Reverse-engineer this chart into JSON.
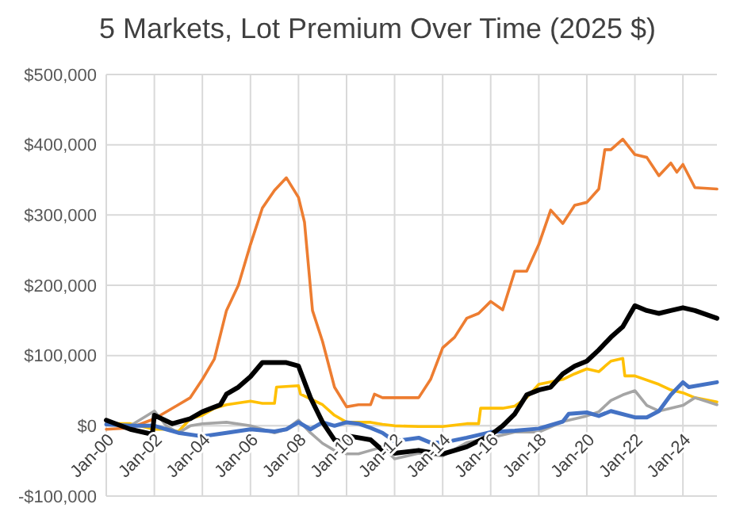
{
  "chart_data": {
    "type": "line",
    "title": "5 Markets, Lot Premium Over Time (2025 $)",
    "xlim": [
      "2000-01",
      "2025-06"
    ],
    "xticks": [
      {
        "value": "2000-01",
        "label": "Jan-00"
      },
      {
        "value": "2002-01",
        "label": "Jan-02"
      },
      {
        "value": "2004-01",
        "label": "Jan-04"
      },
      {
        "value": "2006-01",
        "label": "Jan-06"
      },
      {
        "value": "2008-01",
        "label": "Jan-08"
      },
      {
        "value": "2010-01",
        "label": "Jan-10"
      },
      {
        "value": "2012-01",
        "label": "Jan-12"
      },
      {
        "value": "2014-01",
        "label": "Jan-14"
      },
      {
        "value": "2016-01",
        "label": "Jan-16"
      },
      {
        "value": "2018-01",
        "label": "Jan-18"
      },
      {
        "value": "2020-01",
        "label": "Jan-20"
      },
      {
        "value": "2022-01",
        "label": "Jan-22"
      },
      {
        "value": "2024-01",
        "label": "Jan-24"
      }
    ],
    "ylim": [
      -100000,
      500000
    ],
    "yticks": [
      {
        "value": -100000,
        "label": "-$100,000"
      },
      {
        "value": 0,
        "label": "$0"
      },
      {
        "value": 100000,
        "label": "$100,000"
      },
      {
        "value": 200000,
        "label": "$200,000"
      },
      {
        "value": 300000,
        "label": "$300,000"
      },
      {
        "value": 400000,
        "label": "$400,000"
      },
      {
        "value": 500000,
        "label": "$500,000"
      }
    ],
    "grid": true,
    "series": [
      {
        "color": "#ed7d31",
        "x": [
          "2000-01",
          "2001-01",
          "2002-01",
          "2003-01",
          "2003-07",
          "2004-01",
          "2004-07",
          "2005-01",
          "2005-07",
          "2006-01",
          "2006-07",
          "2007-01",
          "2007-07",
          "2008-01",
          "2008-04",
          "2008-08",
          "2009-01",
          "2009-07",
          "2010-01",
          "2010-07",
          "2011-01",
          "2011-03",
          "2011-07",
          "2012-01",
          "2013-01",
          "2013-07",
          "2014-01",
          "2014-07",
          "2015-01",
          "2015-07",
          "2016-01",
          "2016-07",
          "2017-01",
          "2017-07",
          "2018-01",
          "2018-07",
          "2019-01",
          "2019-07",
          "2020-01",
          "2020-07",
          "2020-10",
          "2021-01",
          "2021-07",
          "2022-01",
          "2022-07",
          "2023-01",
          "2023-07",
          "2023-10",
          "2024-01",
          "2024-07",
          "2025-06"
        ],
        "values": [
          -5000,
          -3000,
          10000,
          30000,
          40000,
          66000,
          95000,
          164000,
          200000,
          258000,
          310000,
          335000,
          353000,
          325000,
          290000,
          164000,
          120000,
          55000,
          27000,
          30000,
          30000,
          45000,
          40000,
          40000,
          40000,
          66000,
          111000,
          126000,
          153000,
          160000,
          177000,
          165000,
          220000,
          220000,
          258000,
          307000,
          288000,
          314000,
          318000,
          337000,
          393000,
          393000,
          408000,
          386000,
          382000,
          356000,
          374000,
          361000,
          372000,
          339000,
          337000
        ]
      },
      {
        "color": "#ffc000",
        "x": [
          "2000-01",
          "2001-01",
          "2002-01",
          "2002-07",
          "2003-01",
          "2003-07",
          "2004-01",
          "2004-07",
          "2005-01",
          "2006-01",
          "2006-07",
          "2007-01",
          "2007-02",
          "2008-01",
          "2008-02",
          "2009-01",
          "2009-07",
          "2010-01",
          "2011-01",
          "2011-07",
          "2012-01",
          "2013-01",
          "2014-01",
          "2015-01",
          "2015-07",
          "2015-08",
          "2016-07",
          "2017-01",
          "2017-07",
          "2018-01",
          "2019-01",
          "2019-07",
          "2020-01",
          "2020-07",
          "2021-01",
          "2021-07",
          "2021-08",
          "2022-01",
          "2023-01",
          "2023-07",
          "2024-01",
          "2024-07",
          "2025-06"
        ],
        "values": [
          3000,
          3000,
          -5000,
          -5000,
          -8000,
          10000,
          15000,
          25000,
          30000,
          35000,
          32000,
          32000,
          55000,
          57000,
          45000,
          30000,
          15000,
          5000,
          5000,
          2000,
          0,
          -1000,
          -1000,
          3000,
          3000,
          25000,
          25000,
          28000,
          40000,
          59000,
          66000,
          74000,
          81000,
          77000,
          92000,
          96000,
          71000,
          71000,
          59000,
          51000,
          47000,
          40000,
          34000
        ]
      },
      {
        "color": "#a5a5a5",
        "x": [
          "2000-01",
          "2001-01",
          "2002-01",
          "2002-07",
          "2003-01",
          "2003-07",
          "2004-01",
          "2005-01",
          "2006-01",
          "2007-01",
          "2007-07",
          "2008-01",
          "2008-07",
          "2009-01",
          "2009-07",
          "2010-01",
          "2010-07",
          "2011-01",
          "2011-07",
          "2012-01",
          "2013-01",
          "2014-01",
          "2015-01",
          "2016-01",
          "2017-01",
          "2018-01",
          "2019-01",
          "2020-01",
          "2020-07",
          "2021-01",
          "2021-07",
          "2022-01",
          "2022-07",
          "2023-01",
          "2024-01",
          "2024-07",
          "2025-06"
        ],
        "values": [
          2000,
          0,
          21000,
          0,
          -10000,
          0,
          3000,
          5000,
          0,
          -10000,
          -5000,
          8000,
          -10000,
          -25000,
          -35000,
          -40000,
          -40000,
          -35000,
          -30000,
          -47000,
          -39000,
          -43000,
          -24000,
          -17000,
          -9000,
          -9000,
          6000,
          14000,
          20000,
          36000,
          44000,
          50000,
          29000,
          21000,
          29000,
          40000,
          30000
        ]
      },
      {
        "color": "#4472c4",
        "x": [
          "2000-01",
          "2001-01",
          "2002-01",
          "2002-07",
          "2003-01",
          "2004-01",
          "2005-01",
          "2006-01",
          "2007-01",
          "2007-07",
          "2008-01",
          "2008-07",
          "2009-01",
          "2009-07",
          "2010-01",
          "2010-07",
          "2011-01",
          "2011-07",
          "2012-01",
          "2013-01",
          "2013-07",
          "2014-01",
          "2015-01",
          "2016-01",
          "2017-01",
          "2018-01",
          "2019-01",
          "2019-04",
          "2020-01",
          "2020-07",
          "2021-01",
          "2022-01",
          "2022-07",
          "2023-01",
          "2023-07",
          "2024-01",
          "2024-04",
          "2025-06"
        ],
        "values": [
          2000,
          0,
          0,
          -5000,
          -10000,
          -15000,
          -10000,
          -5000,
          -8000,
          -5000,
          5000,
          -5000,
          5000,
          0,
          5000,
          3000,
          -3000,
          -10000,
          -22000,
          -17000,
          -24000,
          -24000,
          -17000,
          -9000,
          -7000,
          -4000,
          6000,
          17000,
          19000,
          14000,
          21000,
          12000,
          12000,
          21000,
          44000,
          62000,
          55000,
          62000
        ]
      },
      {
        "color": "#000000",
        "x": [
          "2000-01",
          "2001-01",
          "2001-12",
          "2002-01",
          "2002-10",
          "2003-07",
          "2004-01",
          "2004-10",
          "2005-01",
          "2005-07",
          "2006-01",
          "2006-07",
          "2007-01",
          "2007-07",
          "2008-01",
          "2008-07",
          "2009-01",
          "2009-07",
          "2010-01",
          "2010-03",
          "2011-01",
          "2011-07",
          "2012-01",
          "2013-01",
          "2013-07",
          "2014-01",
          "2015-01",
          "2016-01",
          "2016-07",
          "2017-01",
          "2017-07",
          "2018-01",
          "2018-07",
          "2019-01",
          "2019-07",
          "2020-01",
          "2020-07",
          "2021-01",
          "2021-07",
          "2022-01",
          "2022-07",
          "2023-01",
          "2023-07",
          "2024-01",
          "2024-07",
          "2025-06"
        ],
        "values": [
          8000,
          -5000,
          -12000,
          15000,
          3000,
          10000,
          20000,
          30000,
          45000,
          55000,
          70000,
          90000,
          90000,
          90000,
          85000,
          40000,
          5000,
          -20000,
          -25000,
          -15000,
          -20000,
          -35000,
          -39000,
          -35000,
          -38000,
          -40000,
          -30000,
          -13000,
          0,
          17000,
          44000,
          51000,
          55000,
          74000,
          85000,
          92000,
          108000,
          126000,
          141000,
          171000,
          164000,
          160000,
          164000,
          168000,
          164000,
          153000
        ]
      }
    ]
  }
}
